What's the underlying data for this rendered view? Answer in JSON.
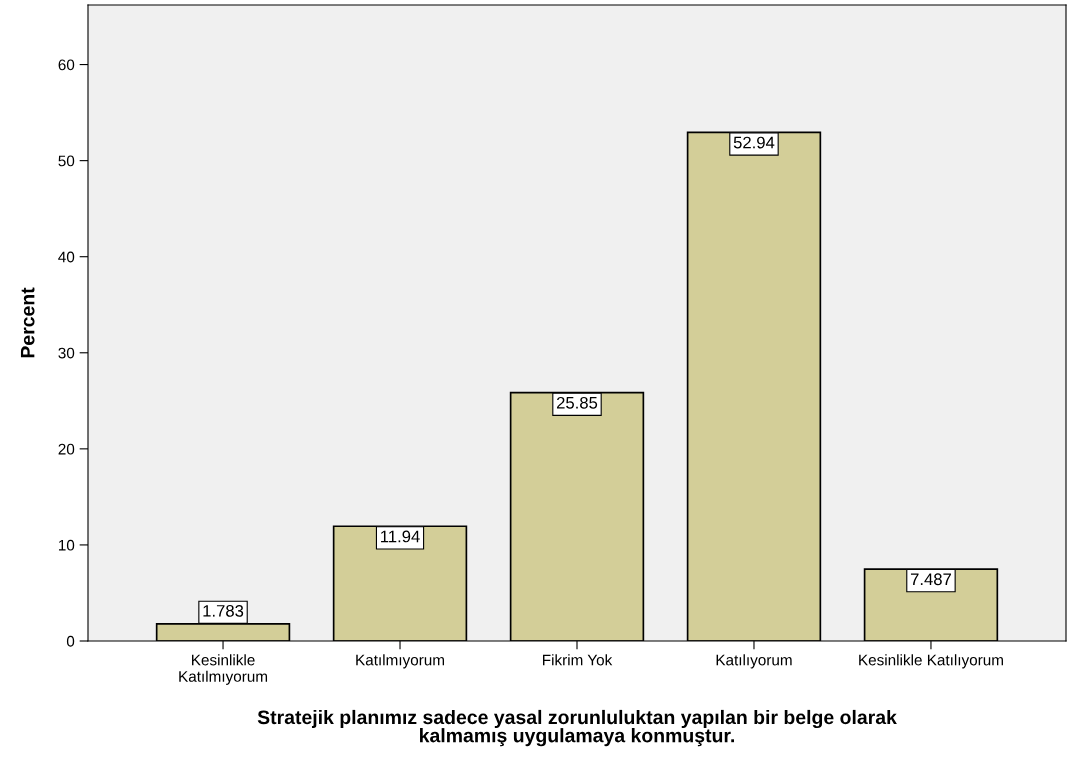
{
  "chart_data": {
    "type": "bar",
    "xlabel": "Stratejik planımız sadece yasal zorunluluktan yapılan bir belge olarak\nkalmamış uygulamaya konmuştur.",
    "ylabel": "Percent",
    "categories": [
      "Kesinlikle\nKatılmıyorum",
      "Katılmıyorum",
      "Fikrim Yok",
      "Katılıyorum",
      "Kesinlikle Katılıyorum"
    ],
    "values": [
      1.783,
      11.94,
      25.85,
      52.94,
      7.487
    ],
    "value_labels": [
      "1.783",
      "11.94",
      "25.85",
      "52.94",
      "7.487"
    ],
    "color": "#d3ce98",
    "ylim": [
      0,
      66.2
    ],
    "yticks": [
      0,
      10,
      20,
      30,
      40,
      50,
      60
    ],
    "grid": false,
    "legend": false
  }
}
